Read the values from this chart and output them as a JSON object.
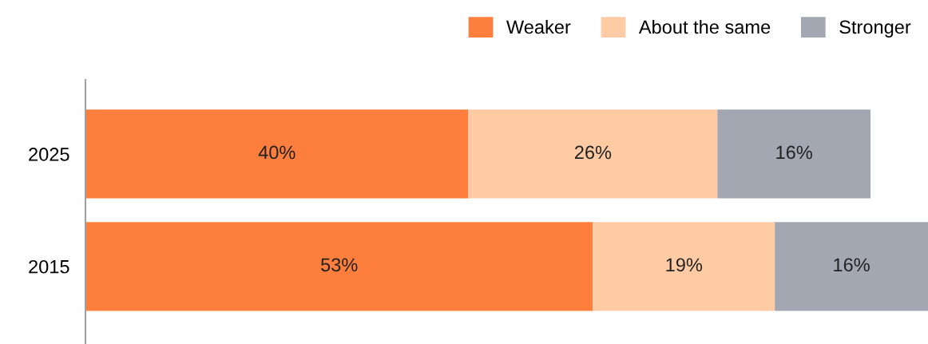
{
  "chart_data": {
    "type": "bar",
    "orientation": "horizontal",
    "stacked": true,
    "categories": [
      "2025",
      "2015"
    ],
    "series": [
      {
        "name": "Weaker",
        "color": "#fe7f3d",
        "values": [
          40,
          53
        ],
        "value_labels": [
          "40%",
          "53%"
        ]
      },
      {
        "name": "About the same",
        "color": "#ffcba5",
        "values": [
          26,
          19
        ],
        "value_labels": [
          "26%",
          "19%"
        ]
      },
      {
        "name": "Stronger",
        "color": "#a2a7b1",
        "values": [
          16,
          16
        ],
        "value_labels": [
          "16%",
          "16%"
        ]
      }
    ],
    "legend": "top right",
    "grid": false,
    "tick_labels": "y"
  }
}
